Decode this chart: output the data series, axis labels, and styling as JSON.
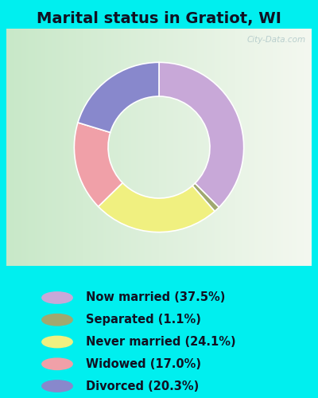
{
  "title": "Marital status in Gratiot, WI",
  "background_color": "#00EFEF",
  "chart_bg_left": "#c8e8c8",
  "chart_bg_right": "#f0f0f0",
  "slices": [
    {
      "label": "Now married (37.5%)",
      "value": 37.5,
      "color": "#c8a8d8"
    },
    {
      "label": "Separated (1.1%)",
      "value": 1.1,
      "color": "#a0a870"
    },
    {
      "label": "Never married (24.1%)",
      "value": 24.1,
      "color": "#f0f080"
    },
    {
      "label": "Widowed (17.0%)",
      "value": 17.0,
      "color": "#f0a0a8"
    },
    {
      "label": "Divorced (20.3%)",
      "value": 20.3,
      "color": "#8888cc"
    }
  ],
  "legend_colors": [
    "#c8a8d8",
    "#a0a870",
    "#f0f080",
    "#f0a0a8",
    "#8888cc"
  ],
  "donut_width": 0.4,
  "title_fontsize": 14,
  "legend_fontsize": 10.5,
  "title_color": "#111122",
  "legend_text_color": "#111122",
  "watermark": "City-Data.com"
}
